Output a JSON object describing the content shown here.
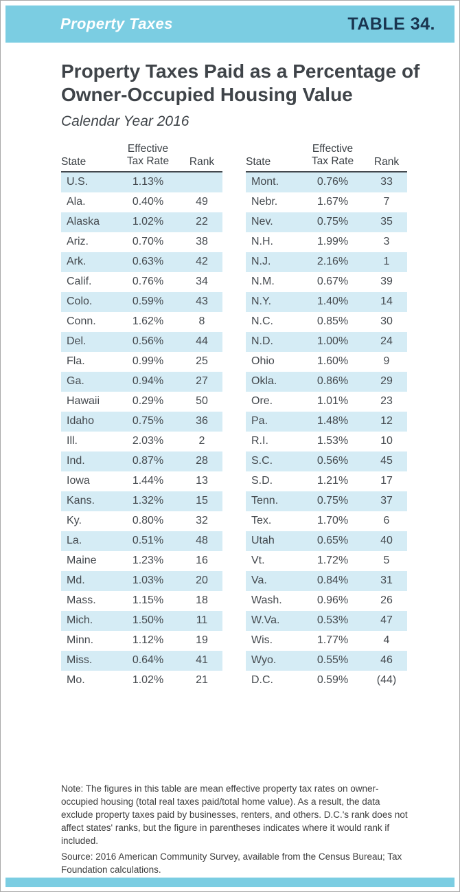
{
  "banner": {
    "label": "Property Taxes",
    "table_number": "TABLE 34."
  },
  "title": "Property Taxes Paid as a Percentage of Owner-Occupied Housing Value",
  "subtitle": "Calendar Year 2016",
  "table": {
    "headers": {
      "state": "State",
      "rate": "Effective\nTax Rate",
      "rank": "Rank"
    },
    "left_rows": [
      {
        "state": "U.S.",
        "rate": "1.13%",
        "rank": ""
      },
      {
        "state": "Ala.",
        "rate": "0.40%",
        "rank": "49"
      },
      {
        "state": "Alaska",
        "rate": "1.02%",
        "rank": "22"
      },
      {
        "state": "Ariz.",
        "rate": "0.70%",
        "rank": "38"
      },
      {
        "state": "Ark.",
        "rate": "0.63%",
        "rank": "42"
      },
      {
        "state": "Calif.",
        "rate": "0.76%",
        "rank": "34"
      },
      {
        "state": "Colo.",
        "rate": "0.59%",
        "rank": "43"
      },
      {
        "state": "Conn.",
        "rate": "1.62%",
        "rank": "8"
      },
      {
        "state": "Del.",
        "rate": "0.56%",
        "rank": "44"
      },
      {
        "state": "Fla.",
        "rate": "0.99%",
        "rank": "25"
      },
      {
        "state": "Ga.",
        "rate": "0.94%",
        "rank": "27"
      },
      {
        "state": "Hawaii",
        "rate": "0.29%",
        "rank": "50"
      },
      {
        "state": "Idaho",
        "rate": "0.75%",
        "rank": "36"
      },
      {
        "state": "Ill.",
        "rate": "2.03%",
        "rank": "2"
      },
      {
        "state": "Ind.",
        "rate": "0.87%",
        "rank": "28"
      },
      {
        "state": "Iowa",
        "rate": "1.44%",
        "rank": "13"
      },
      {
        "state": "Kans.",
        "rate": "1.32%",
        "rank": "15"
      },
      {
        "state": "Ky.",
        "rate": "0.80%",
        "rank": "32"
      },
      {
        "state": "La.",
        "rate": "0.51%",
        "rank": "48"
      },
      {
        "state": "Maine",
        "rate": "1.23%",
        "rank": "16"
      },
      {
        "state": "Md.",
        "rate": "1.03%",
        "rank": "20"
      },
      {
        "state": "Mass.",
        "rate": "1.15%",
        "rank": "18"
      },
      {
        "state": "Mich.",
        "rate": "1.50%",
        "rank": "11"
      },
      {
        "state": "Minn.",
        "rate": "1.12%",
        "rank": "19"
      },
      {
        "state": "Miss.",
        "rate": "0.64%",
        "rank": "41"
      },
      {
        "state": "Mo.",
        "rate": "1.02%",
        "rank": "21"
      }
    ],
    "right_rows": [
      {
        "state": "Mont.",
        "rate": "0.76%",
        "rank": "33"
      },
      {
        "state": "Nebr.",
        "rate": "1.67%",
        "rank": "7"
      },
      {
        "state": "Nev.",
        "rate": "0.75%",
        "rank": "35"
      },
      {
        "state": "N.H.",
        "rate": "1.99%",
        "rank": "3"
      },
      {
        "state": "N.J.",
        "rate": "2.16%",
        "rank": "1"
      },
      {
        "state": "N.M.",
        "rate": "0.67%",
        "rank": "39"
      },
      {
        "state": "N.Y.",
        "rate": "1.40%",
        "rank": "14"
      },
      {
        "state": "N.C.",
        "rate": "0.85%",
        "rank": "30"
      },
      {
        "state": "N.D.",
        "rate": "1.00%",
        "rank": "24"
      },
      {
        "state": "Ohio",
        "rate": "1.60%",
        "rank": "9"
      },
      {
        "state": "Okla.",
        "rate": "0.86%",
        "rank": "29"
      },
      {
        "state": "Ore.",
        "rate": "1.01%",
        "rank": "23"
      },
      {
        "state": "Pa.",
        "rate": "1.48%",
        "rank": "12"
      },
      {
        "state": "R.I.",
        "rate": "1.53%",
        "rank": "10"
      },
      {
        "state": "S.C.",
        "rate": "0.56%",
        "rank": "45"
      },
      {
        "state": "S.D.",
        "rate": "1.21%",
        "rank": "17"
      },
      {
        "state": "Tenn.",
        "rate": "0.75%",
        "rank": "37"
      },
      {
        "state": "Tex.",
        "rate": "1.70%",
        "rank": "6"
      },
      {
        "state": "Utah",
        "rate": "0.65%",
        "rank": "40"
      },
      {
        "state": "Vt.",
        "rate": "1.72%",
        "rank": "5"
      },
      {
        "state": "Va.",
        "rate": "0.84%",
        "rank": "31"
      },
      {
        "state": "Wash.",
        "rate": "0.96%",
        "rank": "26"
      },
      {
        "state": "W.Va.",
        "rate": "0.53%",
        "rank": "47"
      },
      {
        "state": "Wis.",
        "rate": "1.77%",
        "rank": "4"
      },
      {
        "state": "Wyo.",
        "rate": "0.55%",
        "rank": "46"
      },
      {
        "state": "D.C.",
        "rate": "0.59%",
        "rank": "(44)"
      }
    ]
  },
  "note": "Note: The figures in this table are mean effective property tax rates on owner-occupied housing (total real taxes paid/total home value). As a result, the data exclude property taxes paid by businesses, renters, and others. D.C.'s rank does not affect states' ranks, but the figure in parentheses indicates where it would rank if included.",
  "source": "Source: 2016 American Community Survey, available from the Census Bureau; Tax Foundation calculations.",
  "colors": {
    "banner": "#7bcde2",
    "row_stripe": "#d5ecf5",
    "table_number_text": "#1a3550"
  }
}
